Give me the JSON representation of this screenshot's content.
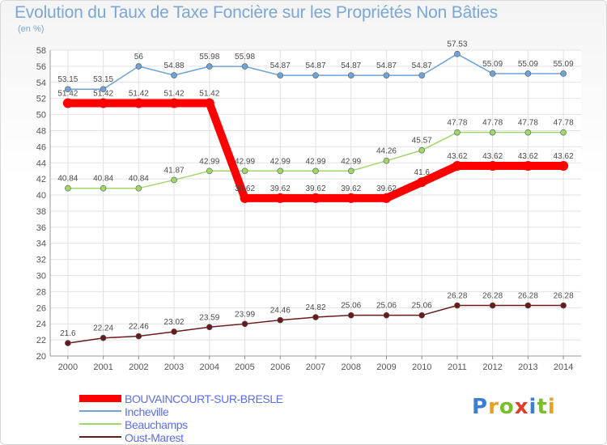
{
  "header": {
    "title": "Evolution du Taux de Taxe Foncière sur les Propriétés Non Bâties",
    "subtitle": "(en %)"
  },
  "logo": {
    "text": "Proxiti",
    "letter_colors": [
      "#3a7fd0",
      "#e8a21c",
      "#7abf2a",
      "#e23d2a",
      "#3a7fd0",
      "#7abf2a",
      "#e8a21c"
    ]
  },
  "chart_data": {
    "type": "line",
    "x": [
      "2000",
      "2001",
      "2002",
      "2003",
      "2004",
      "2005",
      "2006",
      "2007",
      "2008",
      "2009",
      "2010",
      "2011",
      "2012",
      "2013",
      "2014"
    ],
    "ylim": [
      20,
      58
    ],
    "yticks": [
      20,
      22,
      24,
      26,
      28,
      30,
      32,
      34,
      36,
      38,
      40,
      42,
      44,
      46,
      48,
      50,
      52,
      54,
      56,
      58
    ],
    "grid": true,
    "legend_position": "bottom-left",
    "series": [
      {
        "name": "BOUVAINCOURT-SUR-BRESLE",
        "color": "#ff0000",
        "emphasis": true,
        "values": [
          51.42,
          51.42,
          51.42,
          51.42,
          51.42,
          39.62,
          39.62,
          39.62,
          39.62,
          39.62,
          41.6,
          43.62,
          43.62,
          43.62,
          43.62
        ],
        "labels": [
          "51.42",
          "51.42",
          "51.42",
          "51.42",
          "51.42",
          "39.62",
          "39.62",
          "39.62",
          "39.62",
          "39.62",
          "41.6",
          "43.62",
          "43.62",
          "43.62",
          "43.62"
        ]
      },
      {
        "name": "Incheville",
        "color": "#6fa3d8",
        "values": [
          53.15,
          53.15,
          56,
          54.88,
          55.98,
          55.98,
          54.87,
          54.87,
          54.87,
          54.87,
          54.87,
          57.53,
          55.09,
          55.09,
          55.09
        ],
        "labels": [
          "53.15",
          "53.15",
          "56",
          "54.88",
          "55.98",
          "55.98",
          "54.87",
          "54.87",
          "54.87",
          "54.87",
          "54.87",
          "57.53",
          "55.09",
          "55.09",
          "55.09"
        ]
      },
      {
        "name": "Beauchamps",
        "color": "#9ed86a",
        "values": [
          40.84,
          40.84,
          40.84,
          41.87,
          42.99,
          42.99,
          42.99,
          42.99,
          42.99,
          44.26,
          45.57,
          47.78,
          47.78,
          47.78,
          47.78
        ],
        "labels": [
          "40.84",
          "40.84",
          "40.84",
          "41.87",
          "42.99",
          "42.99",
          "42.99",
          "42.99",
          "42.99",
          "44.26",
          "45.57",
          "47.78",
          "47.78",
          "47.78",
          "47.78"
        ]
      },
      {
        "name": "Oust-Marest",
        "color": "#6b1a1a",
        "values": [
          21.6,
          22.24,
          22.46,
          23.02,
          23.59,
          23.99,
          24.46,
          24.82,
          25.06,
          25.06,
          25.06,
          26.28,
          26.28,
          26.28,
          26.28
        ],
        "labels": [
          "21.6",
          "22.24",
          "22.46",
          "23.02",
          "23.59",
          "23.99",
          "24.46",
          "24.82",
          "25.06",
          "25.06",
          "25.06",
          "26.28",
          "26.28",
          "26.28",
          "26.28"
        ]
      }
    ]
  }
}
